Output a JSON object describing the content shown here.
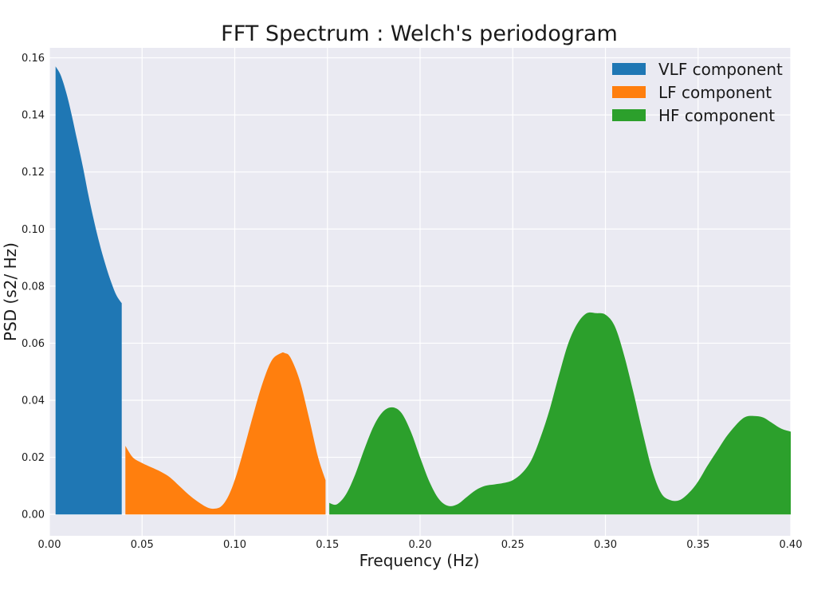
{
  "chart_data": {
    "type": "area",
    "title": "FFT Spectrum : Welch's periodogram",
    "xlabel": "Frequency (Hz)",
    "ylabel": "PSD (s2/ Hz)",
    "xlim": [
      0.0,
      0.4
    ],
    "ylim": [
      -0.0075,
      0.1635
    ],
    "x_ticks": [
      "0.00",
      "0.05",
      "0.10",
      "0.15",
      "0.20",
      "0.25",
      "0.30",
      "0.35",
      "0.40"
    ],
    "y_ticks": [
      "0.00",
      "0.02",
      "0.04",
      "0.06",
      "0.08",
      "0.10",
      "0.12",
      "0.14",
      "0.16"
    ],
    "grid": true,
    "legend_position": "top-right",
    "series": [
      {
        "name": "VLF component",
        "color": "#1f77b4",
        "x": [
          0.0033,
          0.006,
          0.009,
          0.012,
          0.015,
          0.018,
          0.021,
          0.024,
          0.027,
          0.03,
          0.033,
          0.036,
          0.039
        ],
        "y": [
          0.157,
          0.154,
          0.148,
          0.14,
          0.131,
          0.122,
          0.112,
          0.103,
          0.095,
          0.088,
          0.082,
          0.077,
          0.074
        ]
      },
      {
        "name": "LF component",
        "color": "#ff7f0e",
        "x": [
          0.041,
          0.045,
          0.05,
          0.055,
          0.06,
          0.065,
          0.07,
          0.075,
          0.08,
          0.085,
          0.089,
          0.093,
          0.097,
          0.101,
          0.105,
          0.11,
          0.115,
          0.12,
          0.125,
          0.127,
          0.13,
          0.135,
          0.14,
          0.145,
          0.149
        ],
        "y": [
          0.024,
          0.02,
          0.018,
          0.0165,
          0.015,
          0.013,
          0.01,
          0.007,
          0.0045,
          0.0025,
          0.002,
          0.003,
          0.007,
          0.014,
          0.023,
          0.035,
          0.046,
          0.054,
          0.0565,
          0.0565,
          0.055,
          0.047,
          0.034,
          0.02,
          0.012
        ]
      },
      {
        "name": "HF component",
        "color": "#2ca02c",
        "x": [
          0.151,
          0.155,
          0.16,
          0.165,
          0.17,
          0.175,
          0.18,
          0.185,
          0.19,
          0.195,
          0.2,
          0.205,
          0.21,
          0.215,
          0.22,
          0.225,
          0.23,
          0.235,
          0.24,
          0.245,
          0.25,
          0.255,
          0.26,
          0.265,
          0.27,
          0.275,
          0.28,
          0.285,
          0.29,
          0.295,
          0.3,
          0.305,
          0.31,
          0.315,
          0.32,
          0.325,
          0.33,
          0.335,
          0.34,
          0.345,
          0.35,
          0.355,
          0.36,
          0.365,
          0.37,
          0.375,
          0.38,
          0.385,
          0.39,
          0.395,
          0.4
        ],
        "y": [
          0.004,
          0.0035,
          0.007,
          0.014,
          0.023,
          0.031,
          0.036,
          0.0375,
          0.0355,
          0.029,
          0.02,
          0.0115,
          0.0055,
          0.003,
          0.0035,
          0.006,
          0.0085,
          0.01,
          0.0105,
          0.011,
          0.012,
          0.0145,
          0.019,
          0.027,
          0.037,
          0.049,
          0.06,
          0.067,
          0.0705,
          0.0705,
          0.07,
          0.066,
          0.056,
          0.043,
          0.029,
          0.016,
          0.0075,
          0.005,
          0.005,
          0.0075,
          0.0115,
          0.017,
          0.022,
          0.027,
          0.031,
          0.034,
          0.0345,
          0.034,
          0.032,
          0.03,
          0.029
        ]
      }
    ]
  }
}
